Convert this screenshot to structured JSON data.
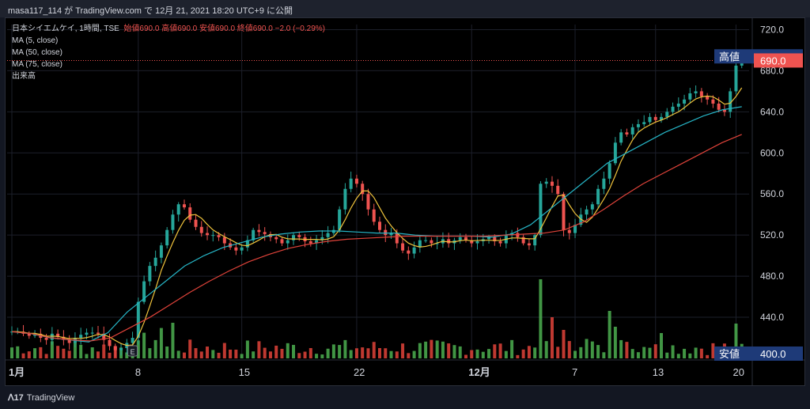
{
  "header": {
    "text": "masa117_114 が TradingView.com で 12月 21, 2021 18:20 UTC+9 に公開"
  },
  "legend": {
    "symbol": "日本シイエムケイ, 1時間, TSE",
    "ohlc": "始値690.0  高値690.0  安値690.0  終値690.0  −2.0 (−0.29%)",
    "ma5": "MA (5, close)",
    "ma50": "MA (50, close)",
    "ma75": "MA (75, close)",
    "volume": "出来高"
  },
  "price_axis": {
    "ticks": [
      "720.0",
      "680.0",
      "640.0",
      "600.0",
      "560.0",
      "520.0",
      "480.0",
      "440.0"
    ],
    "high_label": "高値",
    "high_value": "694.0",
    "last_value": "690.0",
    "low_label": "安値",
    "low_value": "400.0"
  },
  "time_axis": {
    "labels": [
      "1月",
      "8",
      "15",
      "22",
      "12月",
      "7",
      "13",
      "20"
    ]
  },
  "marker": {
    "earnings": "E"
  },
  "footer": {
    "brand": "TradingView"
  },
  "colors": {
    "up": "#26a69a",
    "down": "#ef5350",
    "ma5": "#f0c33c",
    "ma50": "#26b5c6",
    "ma75": "#e0433a",
    "vol_up": "#4caf50",
    "vol_down": "#e0433a",
    "label_bg": "#1e3a78"
  },
  "chart_data": {
    "type": "candlestick",
    "title": "日本シイエムケイ, 1時間, TSE",
    "ylim": [
      400,
      725
    ],
    "x_labels": [
      "1月",
      "8",
      "15",
      "22",
      "12月",
      "7",
      "13",
      "20"
    ],
    "closes_approx": [
      426,
      426,
      424,
      422,
      424,
      420,
      418,
      424,
      421,
      418,
      415,
      420,
      423,
      425,
      425,
      424,
      418,
      412,
      408,
      410,
      415,
      420,
      455,
      475,
      490,
      498,
      510,
      525,
      540,
      550,
      547,
      535,
      528,
      522,
      520,
      520,
      518,
      512,
      508,
      505,
      508,
      515,
      525,
      523,
      521,
      518,
      516,
      512,
      515,
      520,
      518,
      514,
      512,
      515,
      518,
      522,
      525,
      545,
      565,
      575,
      570,
      560,
      545,
      533,
      525,
      520,
      522,
      512,
      505,
      502,
      508,
      515,
      515,
      512,
      512,
      516,
      512,
      515,
      518,
      515,
      512,
      514,
      516,
      518,
      514,
      512,
      520,
      522,
      518,
      512,
      510,
      520,
      570,
      572,
      568,
      560,
      525,
      522,
      530,
      540,
      545,
      550,
      565,
      575,
      590,
      610,
      620,
      618,
      625,
      628,
      630,
      635,
      632,
      635,
      640,
      645,
      648,
      652,
      658,
      660,
      655,
      652,
      648,
      642,
      640,
      660,
      685,
      690
    ],
    "ma50_approx": [
      426,
      424,
      420,
      418,
      416,
      425,
      445,
      460,
      475,
      490,
      500,
      508,
      513,
      518,
      521,
      523,
      524,
      524,
      523,
      522,
      522,
      520,
      519,
      519,
      519,
      518,
      521,
      530,
      545,
      560,
      575,
      590,
      600,
      610,
      620,
      628,
      636,
      642,
      645
    ],
    "ma75_approx": [
      426,
      424,
      420,
      418,
      417,
      420,
      430,
      440,
      452,
      464,
      475,
      485,
      494,
      501,
      507,
      511,
      514,
      516,
      517,
      518,
      519,
      519,
      519,
      519,
      519,
      520,
      521,
      522,
      525,
      533,
      545,
      558,
      570,
      580,
      590,
      600,
      610,
      618
    ]
  }
}
